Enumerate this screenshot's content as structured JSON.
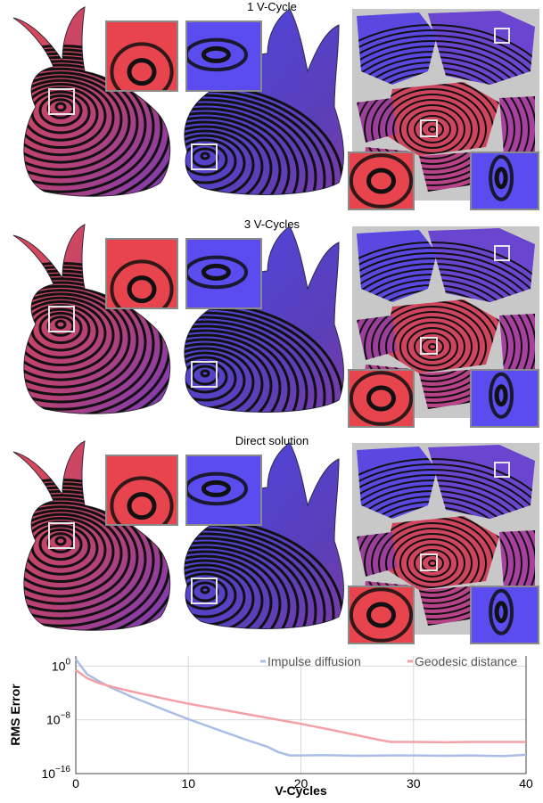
{
  "rows": [
    {
      "title": "1 V-Cycle"
    },
    {
      "title": "3 V-Cycles"
    },
    {
      "title": "Direct solution"
    }
  ],
  "colors": {
    "red_field": "#e8444e",
    "blue_field": "#5b4cf0",
    "purple_field": "#8a3fb0",
    "contour": "#111111",
    "atlas_bg": "#c8c8c8",
    "series_impulse": "#a9bde6",
    "series_geodesic": "#f4a0a6"
  },
  "chart_data": {
    "type": "line",
    "title": "",
    "xlabel": "V-Cycles",
    "ylabel": "RMS Error",
    "xlim": [
      0,
      40
    ],
    "ylim_exponent": [
      -16,
      1.5
    ],
    "log_y": true,
    "grid": true,
    "legend_position": "top-right",
    "x_ticks": [
      "0",
      "10",
      "20",
      "30",
      "40"
    ],
    "y_ticks": [
      {
        "base": "10",
        "exp": "0",
        "value": 0
      },
      {
        "base": "10",
        "exp": "−8",
        "value": -8
      },
      {
        "base": "10",
        "exp": "−16",
        "value": -16
      }
    ],
    "series": [
      {
        "name": "Impulse diffusion",
        "color": "#a9bde6",
        "x": [
          0,
          1,
          2,
          3,
          5,
          8,
          10,
          12,
          15,
          17,
          18,
          19,
          20,
          22,
          25,
          28,
          30,
          33,
          35,
          38,
          40
        ],
        "log10_y": [
          1,
          -1.2,
          -2.2,
          -3.1,
          -4.6,
          -6.6,
          -7.9,
          -9.1,
          -10.9,
          -12.0,
          -12.8,
          -13.3,
          -13.3,
          -13.25,
          -13.35,
          -13.3,
          -13.3,
          -13.35,
          -13.3,
          -13.4,
          -13.2
        ]
      },
      {
        "name": "Geodesic distance",
        "color": "#f4a0a6",
        "x": [
          0,
          1,
          2,
          3,
          5,
          8,
          10,
          13,
          16,
          20,
          23,
          25,
          27,
          28,
          30,
          33,
          35,
          38,
          40
        ],
        "log10_y": [
          -0.6,
          -1.8,
          -2.5,
          -3.0,
          -3.8,
          -4.9,
          -5.6,
          -6.5,
          -7.4,
          -8.6,
          -9.6,
          -10.3,
          -11.0,
          -11.3,
          -11.3,
          -11.35,
          -11.3,
          -11.3,
          -11.3
        ]
      }
    ]
  }
}
